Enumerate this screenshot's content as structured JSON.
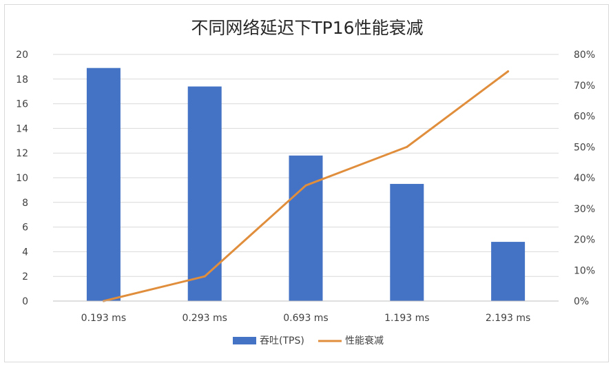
{
  "chart_data": {
    "type": "bar+line",
    "title": "不同网络延迟下TP16性能衰减",
    "categories": [
      "0.193 ms",
      "0.293 ms",
      "0.693 ms",
      "1.193 ms",
      "2.193 ms"
    ],
    "series": [
      {
        "name": "吞吐(TPS)",
        "type": "bar",
        "axis": "left",
        "color": "#4472c4",
        "values": [
          18.9,
          17.4,
          11.8,
          9.5,
          4.8
        ]
      },
      {
        "name": "性能衰减",
        "type": "line",
        "axis": "right",
        "color": "#e08e3c",
        "values": [
          0,
          8,
          37.5,
          50,
          74.5
        ]
      }
    ],
    "y_left": {
      "min": 0,
      "max": 20,
      "step": 2,
      "tick_labels": [
        "0",
        "2",
        "4",
        "6",
        "8",
        "10",
        "12",
        "14",
        "16",
        "18",
        "20"
      ]
    },
    "y_right": {
      "min": 0,
      "max": 80,
      "step": 10,
      "unit": "%",
      "tick_labels": [
        "0%",
        "10%",
        "20%",
        "30%",
        "40%",
        "50%",
        "60%",
        "70%",
        "80%"
      ]
    },
    "grid": true,
    "legend_position": "bottom"
  }
}
